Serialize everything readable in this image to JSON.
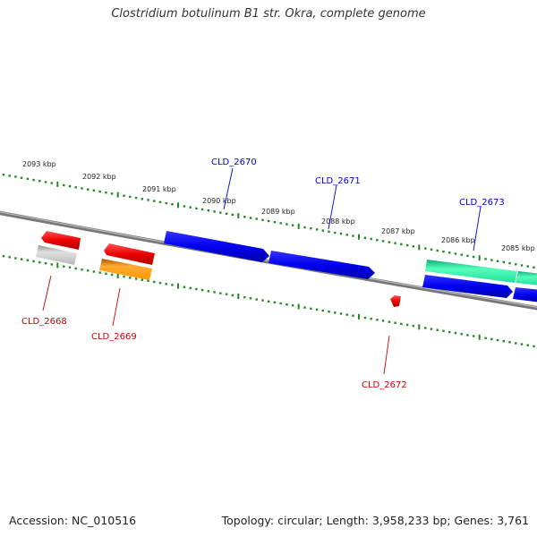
{
  "title": "Clostridium botulinum B1 str. Okra, complete genome",
  "footer": {
    "accession": "Accession: NC_010516",
    "stats": "Topology: circular; Length: 3,958,233 bp; Genes: 3,761"
  },
  "kbp_labels": [
    "2093 kbp",
    "2092 kbp",
    "2091 kbp",
    "2090 kbp",
    "2089 kbp",
    "2088 kbp",
    "2087 kbp",
    "2086 kbp",
    "2085 kbp"
  ],
  "genes": [
    {
      "id": "CLD_2668",
      "strand": "minus",
      "color": "#d40000"
    },
    {
      "id": "CLD_2669",
      "strand": "minus",
      "color": "#d40000"
    },
    {
      "id": "CLD_2670",
      "strand": "plus",
      "color": "#0000cc"
    },
    {
      "id": "CLD_2671",
      "strand": "plus",
      "color": "#0000cc"
    },
    {
      "id": "CLD_2672",
      "strand": "minus",
      "color": "#d40000"
    },
    {
      "id": "CLD_2673",
      "strand": "plus",
      "color": "#0000cc"
    }
  ],
  "feature_colors": {
    "red": "#ee0000",
    "gray": "#c8c8c8",
    "orange": "#ff9900",
    "blue": "#0000ee",
    "green": "#22dd99",
    "tick": "#228822",
    "backbone": "#888888"
  }
}
